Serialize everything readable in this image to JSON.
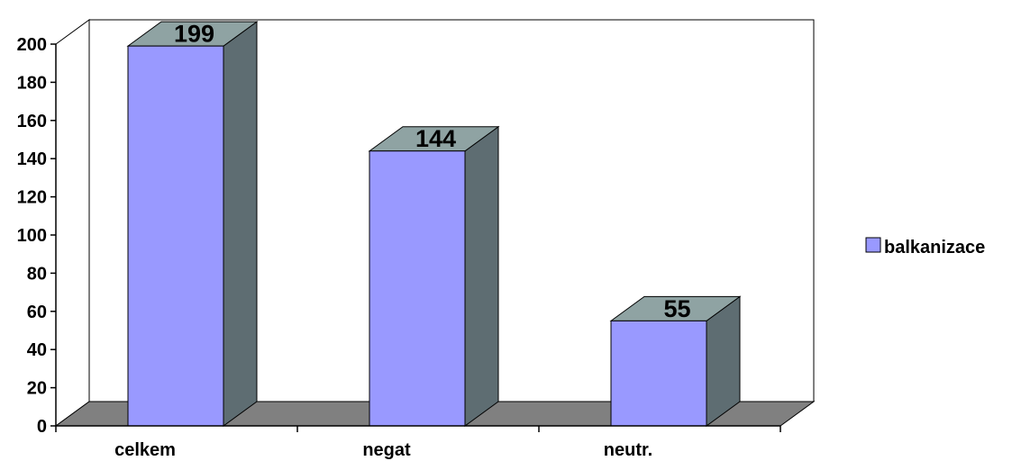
{
  "chart_data": {
    "type": "bar",
    "categories": [
      "celkem",
      "negat",
      "neutr."
    ],
    "series": [
      {
        "name": "balkanizace",
        "values": [
          199,
          144,
          55
        ]
      }
    ],
    "ylim": [
      0,
      200
    ],
    "yticks": [
      0,
      20,
      40,
      60,
      80,
      100,
      120,
      140,
      160,
      180,
      200
    ],
    "data_labels": [
      "199",
      "144",
      "55"
    ],
    "grid": false,
    "legend_position": "right",
    "three_d": true,
    "colors": {
      "bar_front": "#9999ff",
      "bar_side": "#5e6d72",
      "bar_top": "#8fa3a3",
      "floor": "#808080",
      "wall": "#ffffff",
      "outline": "#000000"
    }
  }
}
